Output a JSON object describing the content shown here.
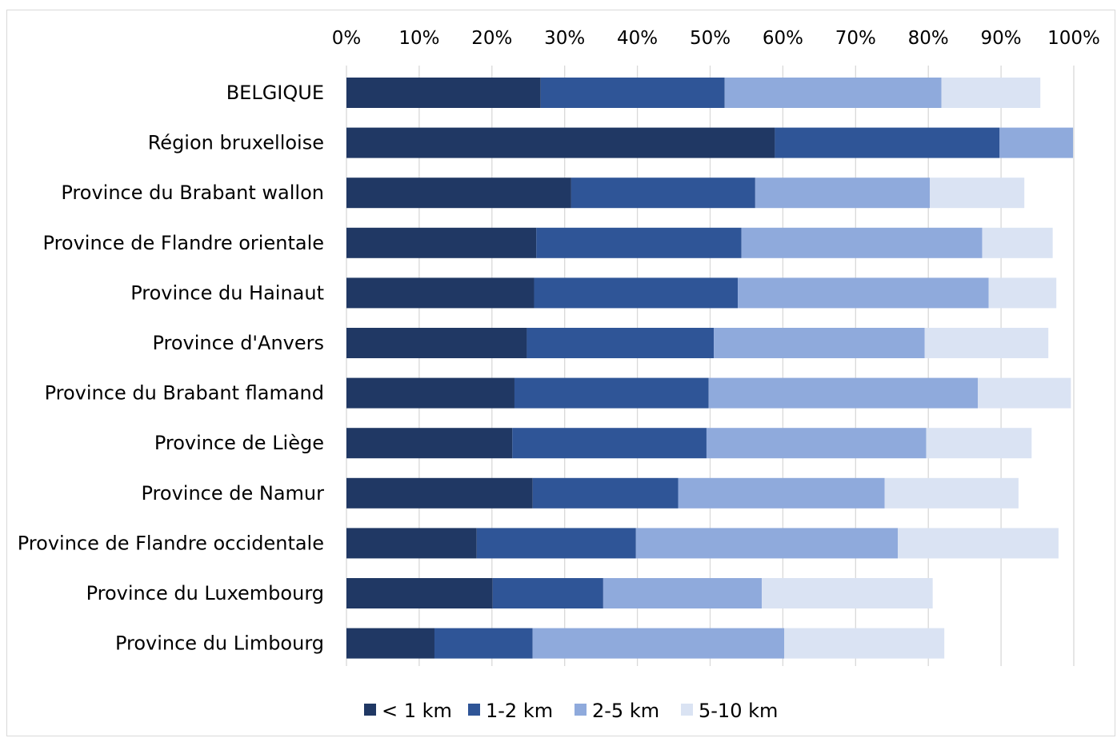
{
  "chart_data": {
    "type": "bar",
    "orientation": "horizontal",
    "stacked": true,
    "title": "",
    "xlabel": "",
    "ylabel": "",
    "xlim": [
      0,
      1
    ],
    "x_ticks": [
      "0%",
      "10%",
      "20%",
      "30%",
      "40%",
      "50%",
      "60%",
      "70%",
      "80%",
      "90%",
      "100%"
    ],
    "x_axis_position": "top",
    "grid": true,
    "legend_position": "bottom",
    "categories": [
      "BELGIQUE",
      "Région bruxelloise",
      "Province du Brabant wallon",
      "Province de Flandre orientale",
      "Province du Hainaut",
      "Province d'Anvers",
      "Province du Brabant flamand",
      "Province de Liège",
      "Province de Namur",
      "Province de Flandre occidentale",
      "Province du Luxembourg",
      "Province du Limbourg"
    ],
    "series": [
      {
        "name": "< 1 km",
        "color": "#203864",
        "values": [
          0.267,
          0.589,
          0.309,
          0.261,
          0.258,
          0.248,
          0.231,
          0.228,
          0.256,
          0.179,
          0.201,
          0.121
        ]
      },
      {
        "name": "1-2 km",
        "color": "#2F5597",
        "values": [
          0.253,
          0.309,
          0.253,
          0.282,
          0.28,
          0.257,
          0.267,
          0.267,
          0.2,
          0.219,
          0.152,
          0.135
        ]
      },
      {
        "name": "2-5 km",
        "color": "#8FAADC",
        "values": [
          0.298,
          0.101,
          0.24,
          0.331,
          0.345,
          0.29,
          0.37,
          0.302,
          0.284,
          0.36,
          0.218,
          0.346
        ]
      },
      {
        "name": "5-10 km",
        "color": "#DAE3F3",
        "values": [
          0.136,
          0.0,
          0.13,
          0.097,
          0.093,
          0.17,
          0.128,
          0.145,
          0.184,
          0.221,
          0.235,
          0.22
        ]
      }
    ]
  }
}
